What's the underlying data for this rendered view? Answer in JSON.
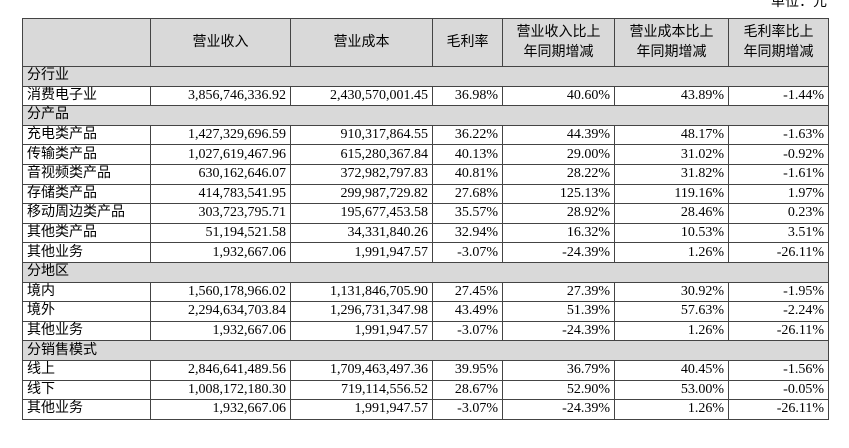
{
  "unit": "单位：元",
  "table": {
    "header": [
      "营业收入",
      "营业成本",
      "毛利率",
      [
        "营业收入比上",
        "年同期增减"
      ],
      [
        "营业成本比上",
        "年同期增减"
      ],
      [
        "毛利率比上",
        "年同期增减"
      ]
    ],
    "sections": [
      {
        "title": "分行业",
        "rows": [
          [
            "消费电子业",
            "3,856,746,336.92",
            "2,430,570,001.45",
            "36.98%",
            "40.60%",
            "43.89%",
            "-1.44%"
          ]
        ]
      },
      {
        "title": "分产品",
        "rows": [
          [
            "充电类产品",
            "1,427,329,696.59",
            "910,317,864.55",
            "36.22%",
            "44.39%",
            "48.17%",
            "-1.63%"
          ],
          [
            "传输类产品",
            "1,027,619,467.96",
            "615,280,367.84",
            "40.13%",
            "29.00%",
            "31.02%",
            "-0.92%"
          ],
          [
            "音视频类产品",
            "630,162,646.07",
            "372,982,797.83",
            "40.81%",
            "28.22%",
            "31.82%",
            "-1.61%"
          ],
          [
            "存储类产品",
            "414,783,541.95",
            "299,987,729.82",
            "27.68%",
            "125.13%",
            "119.16%",
            "1.97%"
          ],
          [
            "移动周边类产品",
            "303,723,795.71",
            "195,677,453.58",
            "35.57%",
            "28.92%",
            "28.46%",
            "0.23%"
          ],
          [
            "其他类产品",
            "51,194,521.58",
            "34,331,840.26",
            "32.94%",
            "16.32%",
            "10.53%",
            "3.51%"
          ],
          [
            "其他业务",
            "1,932,667.06",
            "1,991,947.57",
            "-3.07%",
            "-24.39%",
            "1.26%",
            "-26.11%"
          ]
        ]
      },
      {
        "title": "分地区",
        "rows": [
          [
            "境内",
            "1,560,178,966.02",
            "1,131,846,705.90",
            "27.45%",
            "27.39%",
            "30.92%",
            "-1.95%"
          ],
          [
            "境外",
            "2,294,634,703.84",
            "1,296,731,347.98",
            "43.49%",
            "51.39%",
            "57.63%",
            "-2.24%"
          ],
          [
            "其他业务",
            "1,932,667.06",
            "1,991,947.57",
            "-3.07%",
            "-24.39%",
            "1.26%",
            "-26.11%"
          ]
        ]
      },
      {
        "title": "分销售模式",
        "rows": [
          [
            "线上",
            "2,846,641,489.56",
            "1,709,463,497.36",
            "39.95%",
            "36.79%",
            "40.45%",
            "-1.56%"
          ],
          [
            "线下",
            "1,008,172,180.30",
            "719,114,556.52",
            "28.67%",
            "52.90%",
            "53.00%",
            "-0.05%"
          ],
          [
            "其他业务",
            "1,932,667.06",
            "1,991,947.57",
            "-3.07%",
            "-24.39%",
            "1.26%",
            "-26.11%"
          ]
        ]
      }
    ]
  }
}
